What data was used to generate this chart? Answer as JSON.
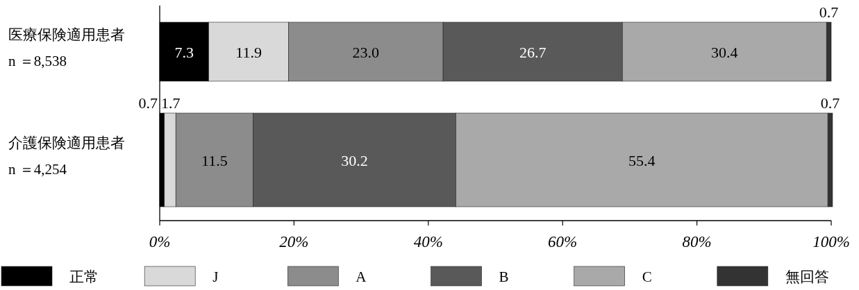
{
  "chart_data": {
    "type": "bar",
    "orientation": "horizontal",
    "stacked": true,
    "legend": "bottom",
    "categories": [
      "医療保険適用患者\nn ＝8,538",
      "介護保険適用患者\nn ＝4,254"
    ],
    "series": [
      {
        "name": "正常",
        "color": "#000000",
        "values": [
          7.3,
          0.7
        ],
        "value_labels": [
          "7.3",
          "0.7"
        ]
      },
      {
        "name": "J",
        "color": "#d9d9d9",
        "values": [
          11.9,
          1.7
        ],
        "value_labels": [
          "11.9",
          "1.7"
        ]
      },
      {
        "name": "A",
        "color": "#8c8c8c",
        "values": [
          23.0,
          11.5
        ],
        "value_labels": [
          "23.0",
          "11.5"
        ]
      },
      {
        "name": "B",
        "color": "#595959",
        "values": [
          26.7,
          30.2
        ],
        "value_labels": [
          "26.7",
          "30.2"
        ]
      },
      {
        "name": "C",
        "color": "#a9a9a9",
        "values": [
          30.4,
          55.4
        ],
        "value_labels": [
          "30.4",
          "55.4"
        ]
      },
      {
        "name": "無回答",
        "color": "#333333",
        "values": [
          0.7,
          0.7
        ],
        "value_labels": [
          "0.7",
          "0.7"
        ]
      }
    ],
    "xlim": [
      0,
      100
    ],
    "xticks": [
      {
        "value": 0,
        "label": "0%"
      },
      {
        "value": 20,
        "label": "20%"
      },
      {
        "value": 40,
        "label": "40%"
      },
      {
        "value": 60,
        "label": "60%"
      },
      {
        "value": 80,
        "label": "80%"
      },
      {
        "value": 100,
        "label": "100%"
      }
    ]
  }
}
